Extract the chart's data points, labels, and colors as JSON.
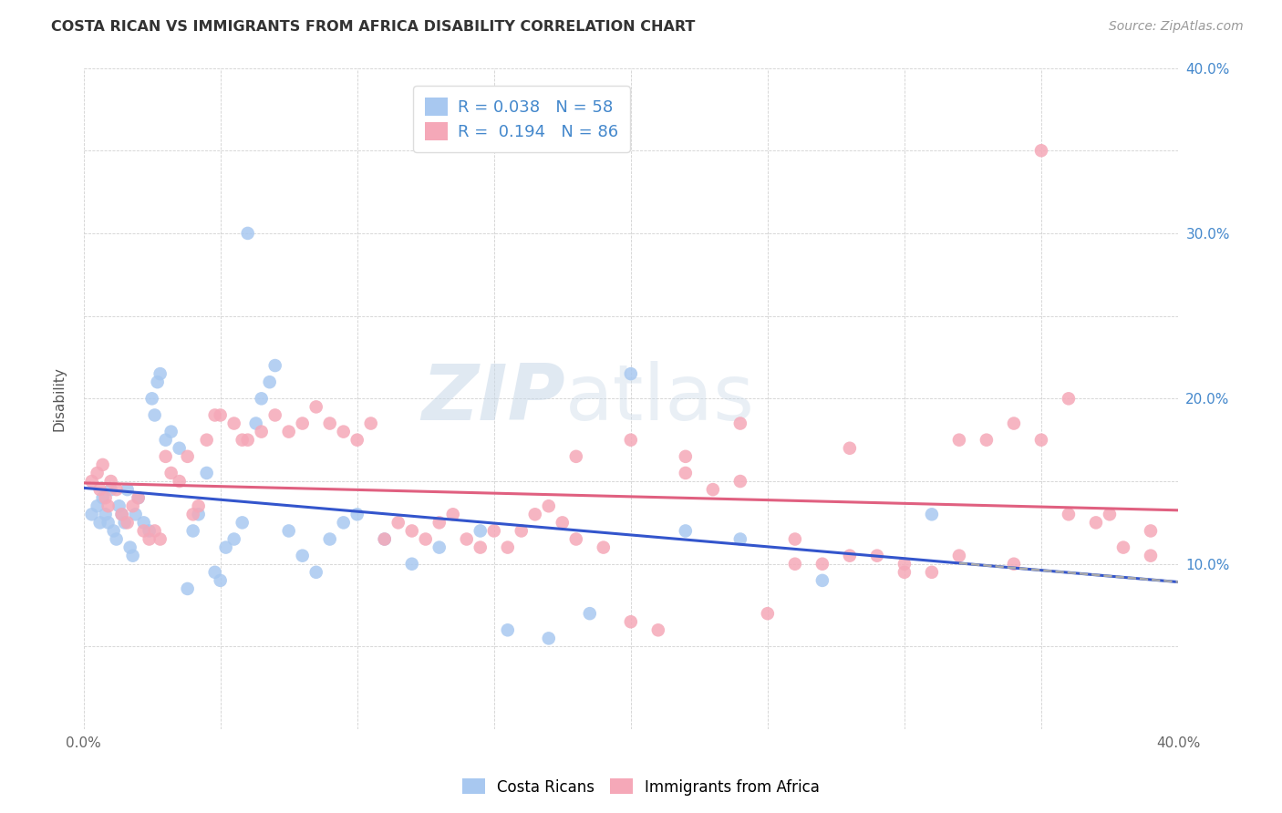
{
  "title": "COSTA RICAN VS IMMIGRANTS FROM AFRICA DISABILITY CORRELATION CHART",
  "source": "Source: ZipAtlas.com",
  "ylabel": "Disability",
  "color_blue": "#a8c8f0",
  "color_pink": "#f5a8b8",
  "line_blue": "#3355cc",
  "line_pink": "#e06080",
  "line_dashed_color": "#aaaaaa",
  "R_blue": 0.038,
  "N_blue": 58,
  "R_pink": 0.194,
  "N_pink": 86,
  "watermark_zip": "ZIP",
  "watermark_atlas": "atlas",
  "tick_label_color": "#4488cc",
  "legend_val_color": "#4488cc",
  "blue_points_x": [
    0.003,
    0.005,
    0.006,
    0.007,
    0.008,
    0.009,
    0.01,
    0.011,
    0.012,
    0.013,
    0.014,
    0.015,
    0.016,
    0.017,
    0.018,
    0.019,
    0.02,
    0.022,
    0.024,
    0.025,
    0.026,
    0.027,
    0.028,
    0.03,
    0.032,
    0.035,
    0.038,
    0.04,
    0.042,
    0.045,
    0.048,
    0.05,
    0.052,
    0.055,
    0.058,
    0.06,
    0.063,
    0.065,
    0.068,
    0.07,
    0.075,
    0.08,
    0.085,
    0.09,
    0.095,
    0.1,
    0.11,
    0.12,
    0.13,
    0.145,
    0.155,
    0.17,
    0.185,
    0.2,
    0.22,
    0.24,
    0.27,
    0.31
  ],
  "blue_points_y": [
    0.13,
    0.135,
    0.125,
    0.14,
    0.13,
    0.125,
    0.145,
    0.12,
    0.115,
    0.135,
    0.13,
    0.125,
    0.145,
    0.11,
    0.105,
    0.13,
    0.14,
    0.125,
    0.12,
    0.2,
    0.19,
    0.21,
    0.215,
    0.175,
    0.18,
    0.17,
    0.085,
    0.12,
    0.13,
    0.155,
    0.095,
    0.09,
    0.11,
    0.115,
    0.125,
    0.3,
    0.185,
    0.2,
    0.21,
    0.22,
    0.12,
    0.105,
    0.095,
    0.115,
    0.125,
    0.13,
    0.115,
    0.1,
    0.11,
    0.12,
    0.06,
    0.055,
    0.07,
    0.215,
    0.12,
    0.115,
    0.09,
    0.13
  ],
  "pink_points_x": [
    0.003,
    0.005,
    0.006,
    0.007,
    0.008,
    0.009,
    0.01,
    0.012,
    0.014,
    0.016,
    0.018,
    0.02,
    0.022,
    0.024,
    0.026,
    0.028,
    0.03,
    0.032,
    0.035,
    0.038,
    0.04,
    0.042,
    0.045,
    0.048,
    0.05,
    0.055,
    0.058,
    0.06,
    0.065,
    0.07,
    0.075,
    0.08,
    0.085,
    0.09,
    0.095,
    0.1,
    0.105,
    0.11,
    0.115,
    0.12,
    0.125,
    0.13,
    0.135,
    0.14,
    0.145,
    0.15,
    0.155,
    0.16,
    0.165,
    0.17,
    0.175,
    0.18,
    0.19,
    0.2,
    0.21,
    0.22,
    0.23,
    0.24,
    0.25,
    0.26,
    0.27,
    0.28,
    0.29,
    0.3,
    0.31,
    0.32,
    0.33,
    0.34,
    0.35,
    0.36,
    0.37,
    0.38,
    0.39,
    0.18,
    0.2,
    0.22,
    0.24,
    0.26,
    0.28,
    0.3,
    0.32,
    0.34,
    0.35,
    0.36,
    0.375,
    0.39
  ],
  "pink_points_y": [
    0.15,
    0.155,
    0.145,
    0.16,
    0.14,
    0.135,
    0.15,
    0.145,
    0.13,
    0.125,
    0.135,
    0.14,
    0.12,
    0.115,
    0.12,
    0.115,
    0.165,
    0.155,
    0.15,
    0.165,
    0.13,
    0.135,
    0.175,
    0.19,
    0.19,
    0.185,
    0.175,
    0.175,
    0.18,
    0.19,
    0.18,
    0.185,
    0.195,
    0.185,
    0.18,
    0.175,
    0.185,
    0.115,
    0.125,
    0.12,
    0.115,
    0.125,
    0.13,
    0.115,
    0.11,
    0.12,
    0.11,
    0.12,
    0.13,
    0.135,
    0.125,
    0.115,
    0.11,
    0.065,
    0.06,
    0.155,
    0.145,
    0.15,
    0.07,
    0.1,
    0.1,
    0.105,
    0.105,
    0.095,
    0.095,
    0.175,
    0.175,
    0.185,
    0.175,
    0.13,
    0.125,
    0.11,
    0.105,
    0.165,
    0.175,
    0.165,
    0.185,
    0.115,
    0.17,
    0.1,
    0.105,
    0.1,
    0.35,
    0.2,
    0.13,
    0.12
  ]
}
